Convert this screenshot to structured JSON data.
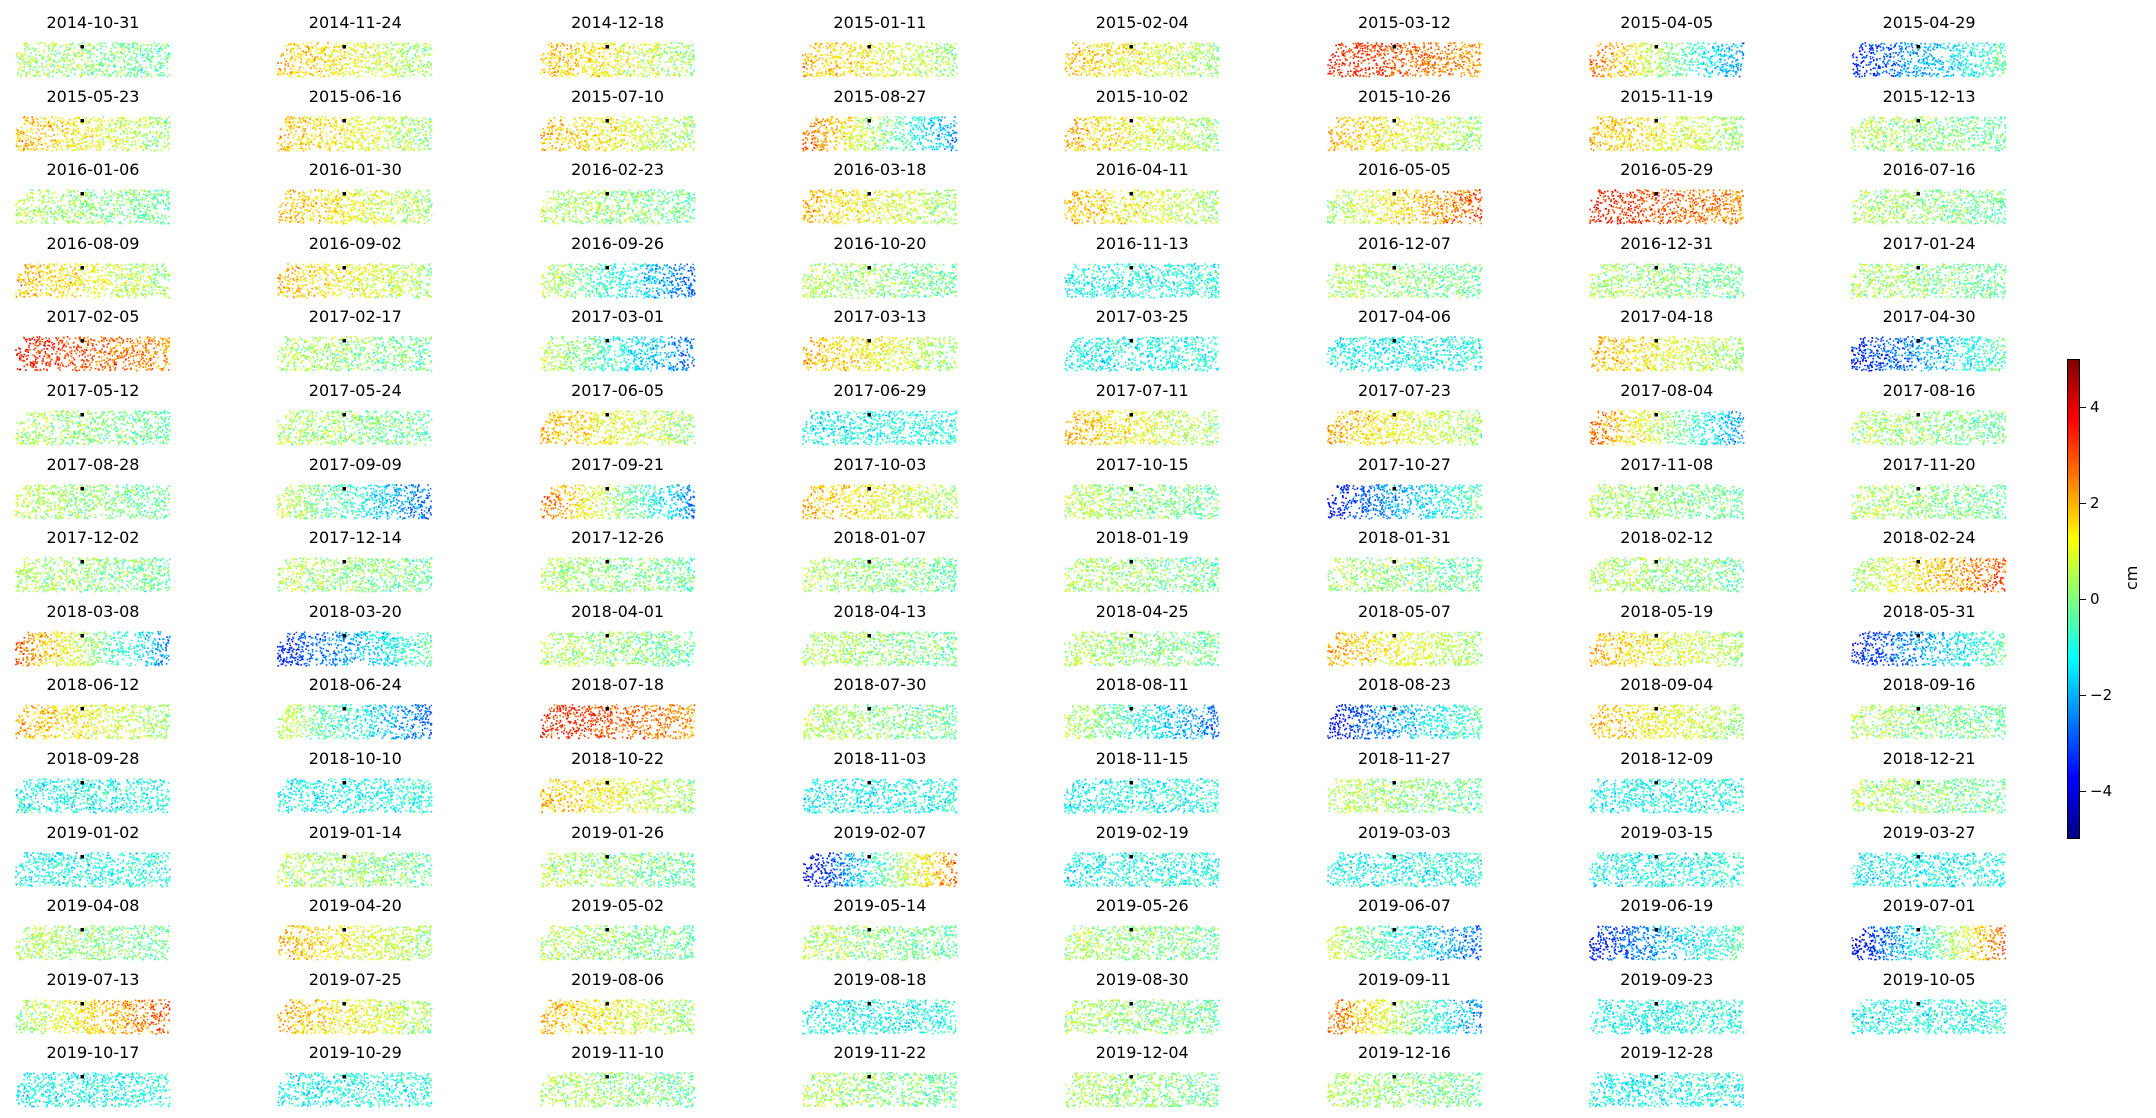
{
  "figure": {
    "title": "",
    "colorbar": {
      "unit_label": "cm",
      "min": -5,
      "max": 5,
      "ticks": [
        4,
        2,
        0,
        -2,
        -4
      ],
      "tick_labels": [
        "4",
        "2",
        "0",
        "−2",
        "−4"
      ],
      "colormap": "jet",
      "colormap_stops": [
        "#00007f",
        "#0000ff",
        "#007fff",
        "#00ffff",
        "#7fff7f",
        "#ffff00",
        "#ff7f00",
        "#ff0000",
        "#7f0000"
      ]
    }
  },
  "chart_data": {
    "type": "heatmap",
    "layout": "small-multiples",
    "rows": 15,
    "cols": 8,
    "value_unit": "cm",
    "value_range": [
      -5,
      5
    ],
    "panels": [
      {
        "date": "2014-10-31",
        "pattern": "neutral"
      },
      {
        "date": "2014-11-24",
        "pattern": "warm"
      },
      {
        "date": "2014-12-18",
        "pattern": "warm"
      },
      {
        "date": "2015-01-11",
        "pattern": "warm"
      },
      {
        "date": "2015-02-04",
        "pattern": "warm"
      },
      {
        "date": "2015-03-12",
        "pattern": "warm-strong"
      },
      {
        "date": "2015-04-05",
        "pattern": "warm-left-cool-right"
      },
      {
        "date": "2015-04-29",
        "pattern": "cool-left"
      },
      {
        "date": "2015-05-23",
        "pattern": "warm"
      },
      {
        "date": "2015-06-16",
        "pattern": "warm"
      },
      {
        "date": "2015-07-10",
        "pattern": "warm"
      },
      {
        "date": "2015-08-27",
        "pattern": "warm-left-cool-right"
      },
      {
        "date": "2015-10-02",
        "pattern": "warm"
      },
      {
        "date": "2015-10-26",
        "pattern": "warm"
      },
      {
        "date": "2015-11-19",
        "pattern": "warm"
      },
      {
        "date": "2015-12-13",
        "pattern": "neutral"
      },
      {
        "date": "2016-01-06",
        "pattern": "neutral"
      },
      {
        "date": "2016-01-30",
        "pattern": "warm"
      },
      {
        "date": "2016-02-23",
        "pattern": "neutral"
      },
      {
        "date": "2016-03-18",
        "pattern": "warm"
      },
      {
        "date": "2016-04-11",
        "pattern": "warm"
      },
      {
        "date": "2016-05-05",
        "pattern": "warm-right"
      },
      {
        "date": "2016-05-29",
        "pattern": "warm-strong"
      },
      {
        "date": "2016-07-16",
        "pattern": "neutral"
      },
      {
        "date": "2016-08-09",
        "pattern": "warm"
      },
      {
        "date": "2016-09-02",
        "pattern": "warm"
      },
      {
        "date": "2016-09-26",
        "pattern": "cool-right"
      },
      {
        "date": "2016-10-20",
        "pattern": "neutral"
      },
      {
        "date": "2016-11-13",
        "pattern": "cool"
      },
      {
        "date": "2016-12-07",
        "pattern": "neutral"
      },
      {
        "date": "2016-12-31",
        "pattern": "neutral"
      },
      {
        "date": "2017-01-24",
        "pattern": "neutral"
      },
      {
        "date": "2017-02-05",
        "pattern": "warm-strong"
      },
      {
        "date": "2017-02-17",
        "pattern": "neutral"
      },
      {
        "date": "2017-03-01",
        "pattern": "cool-right"
      },
      {
        "date": "2017-03-13",
        "pattern": "warm"
      },
      {
        "date": "2017-03-25",
        "pattern": "cool"
      },
      {
        "date": "2017-04-06",
        "pattern": "cool"
      },
      {
        "date": "2017-04-18",
        "pattern": "warm"
      },
      {
        "date": "2017-04-30",
        "pattern": "cool-left"
      },
      {
        "date": "2017-05-12",
        "pattern": "neutral"
      },
      {
        "date": "2017-05-24",
        "pattern": "neutral"
      },
      {
        "date": "2017-06-05",
        "pattern": "warm"
      },
      {
        "date": "2017-06-29",
        "pattern": "cool"
      },
      {
        "date": "2017-07-11",
        "pattern": "warm"
      },
      {
        "date": "2017-07-23",
        "pattern": "warm"
      },
      {
        "date": "2017-08-04",
        "pattern": "warm-left-cool-right"
      },
      {
        "date": "2017-08-16",
        "pattern": "neutral"
      },
      {
        "date": "2017-08-28",
        "pattern": "neutral"
      },
      {
        "date": "2017-09-09",
        "pattern": "cool-right"
      },
      {
        "date": "2017-09-21",
        "pattern": "warm-left-cool-right"
      },
      {
        "date": "2017-10-03",
        "pattern": "warm"
      },
      {
        "date": "2017-10-15",
        "pattern": "neutral"
      },
      {
        "date": "2017-10-27",
        "pattern": "cool-left"
      },
      {
        "date": "2017-11-08",
        "pattern": "neutral"
      },
      {
        "date": "2017-11-20",
        "pattern": "neutral"
      },
      {
        "date": "2017-12-02",
        "pattern": "neutral"
      },
      {
        "date": "2017-12-14",
        "pattern": "neutral"
      },
      {
        "date": "2017-12-26",
        "pattern": "neutral"
      },
      {
        "date": "2018-01-07",
        "pattern": "neutral"
      },
      {
        "date": "2018-01-19",
        "pattern": "neutral"
      },
      {
        "date": "2018-01-31",
        "pattern": "neutral"
      },
      {
        "date": "2018-02-12",
        "pattern": "neutral"
      },
      {
        "date": "2018-02-24",
        "pattern": "warm-right"
      },
      {
        "date": "2018-03-08",
        "pattern": "warm-left-cool-right"
      },
      {
        "date": "2018-03-20",
        "pattern": "cool-left"
      },
      {
        "date": "2018-04-01",
        "pattern": "neutral"
      },
      {
        "date": "2018-04-13",
        "pattern": "neutral"
      },
      {
        "date": "2018-04-25",
        "pattern": "neutral"
      },
      {
        "date": "2018-05-07",
        "pattern": "warm"
      },
      {
        "date": "2018-05-19",
        "pattern": "warm"
      },
      {
        "date": "2018-05-31",
        "pattern": "cool-left"
      },
      {
        "date": "2018-06-12",
        "pattern": "warm"
      },
      {
        "date": "2018-06-24",
        "pattern": "cool-right"
      },
      {
        "date": "2018-07-18",
        "pattern": "warm-strong"
      },
      {
        "date": "2018-07-30",
        "pattern": "neutral"
      },
      {
        "date": "2018-08-11",
        "pattern": "cool-right"
      },
      {
        "date": "2018-08-23",
        "pattern": "cool-left"
      },
      {
        "date": "2018-09-04",
        "pattern": "warm"
      },
      {
        "date": "2018-09-16",
        "pattern": "neutral"
      },
      {
        "date": "2018-09-28",
        "pattern": "cool"
      },
      {
        "date": "2018-10-10",
        "pattern": "cool"
      },
      {
        "date": "2018-10-22",
        "pattern": "warm"
      },
      {
        "date": "2018-11-03",
        "pattern": "cool"
      },
      {
        "date": "2018-11-15",
        "pattern": "cool"
      },
      {
        "date": "2018-11-27",
        "pattern": "neutral"
      },
      {
        "date": "2018-12-09",
        "pattern": "cool"
      },
      {
        "date": "2018-12-21",
        "pattern": "neutral"
      },
      {
        "date": "2019-01-02",
        "pattern": "cool"
      },
      {
        "date": "2019-01-14",
        "pattern": "neutral"
      },
      {
        "date": "2019-01-26",
        "pattern": "neutral"
      },
      {
        "date": "2019-02-07",
        "pattern": "cool-left-warm-right"
      },
      {
        "date": "2019-02-19",
        "pattern": "cool"
      },
      {
        "date": "2019-03-03",
        "pattern": "cool"
      },
      {
        "date": "2019-03-15",
        "pattern": "cool"
      },
      {
        "date": "2019-03-27",
        "pattern": "cool"
      },
      {
        "date": "2019-04-08",
        "pattern": "neutral"
      },
      {
        "date": "2019-04-20",
        "pattern": "warm"
      },
      {
        "date": "2019-05-02",
        "pattern": "neutral"
      },
      {
        "date": "2019-05-14",
        "pattern": "neutral"
      },
      {
        "date": "2019-05-26",
        "pattern": "neutral"
      },
      {
        "date": "2019-06-07",
        "pattern": "cool-right"
      },
      {
        "date": "2019-06-19",
        "pattern": "cool-left"
      },
      {
        "date": "2019-07-01",
        "pattern": "cool-left-warm-right"
      },
      {
        "date": "2019-07-13",
        "pattern": "warm-right"
      },
      {
        "date": "2019-07-25",
        "pattern": "warm"
      },
      {
        "date": "2019-08-06",
        "pattern": "warm"
      },
      {
        "date": "2019-08-18",
        "pattern": "cool"
      },
      {
        "date": "2019-08-30",
        "pattern": "neutral"
      },
      {
        "date": "2019-09-11",
        "pattern": "warm-left-cool-right"
      },
      {
        "date": "2019-09-23",
        "pattern": "cool"
      },
      {
        "date": "2019-10-05",
        "pattern": "cool"
      },
      {
        "date": "2019-10-17",
        "pattern": "cool"
      },
      {
        "date": "2019-10-29",
        "pattern": "cool"
      },
      {
        "date": "2019-11-10",
        "pattern": "neutral"
      },
      {
        "date": "2019-11-22",
        "pattern": "neutral"
      },
      {
        "date": "2019-12-04",
        "pattern": "neutral"
      },
      {
        "date": "2019-12-16",
        "pattern": "neutral"
      },
      {
        "date": "2019-12-28",
        "pattern": "cool"
      }
    ]
  }
}
